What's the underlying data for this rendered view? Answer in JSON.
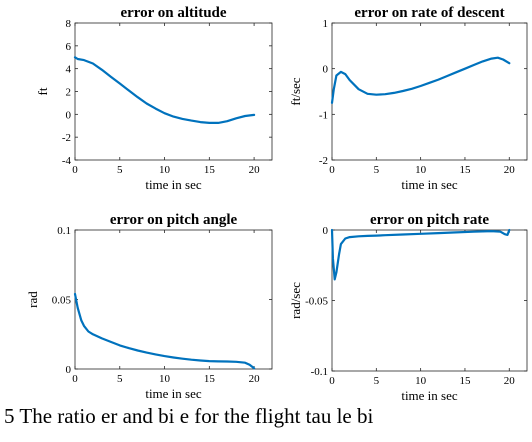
{
  "chart_data": [
    {
      "type": "line",
      "title": "error on altitude",
      "xlabel": "time in sec",
      "ylabel": "ft",
      "xlim": [
        0,
        22
      ],
      "ylim": [
        -4,
        8
      ],
      "xticks": [
        0,
        5,
        10,
        15,
        20
      ],
      "yticks": [
        -4,
        -2,
        0,
        2,
        4,
        6,
        8
      ],
      "grid": false,
      "series": [
        {
          "color": "#0072BD",
          "x": [
            0,
            0.3,
            1,
            2,
            3,
            4,
            5,
            6,
            7,
            8,
            9,
            10,
            11,
            12,
            13,
            14,
            15,
            16,
            17,
            18,
            19,
            20
          ],
          "y": [
            5.0,
            4.85,
            4.75,
            4.45,
            3.9,
            3.3,
            2.7,
            2.1,
            1.5,
            0.95,
            0.5,
            0.1,
            -0.2,
            -0.4,
            -0.55,
            -0.68,
            -0.75,
            -0.75,
            -0.6,
            -0.35,
            -0.15,
            -0.05
          ]
        }
      ]
    },
    {
      "type": "line",
      "title": "error on rate of descent",
      "xlabel": "time in sec",
      "ylabel": "ft/sec",
      "xlim": [
        0,
        22
      ],
      "ylim": [
        -2,
        1
      ],
      "xticks": [
        0,
        5,
        10,
        15,
        20
      ],
      "yticks": [
        -2,
        -1,
        0,
        1
      ],
      "grid": false,
      "series": [
        {
          "color": "#0072BD",
          "x": [
            0,
            0.2,
            0.5,
            1,
            1.5,
            2,
            3,
            4,
            5,
            6,
            7,
            8,
            9,
            10,
            11,
            12,
            13,
            14,
            15,
            16,
            17,
            18,
            18.7,
            19.3,
            20
          ],
          "y": [
            -0.75,
            -0.45,
            -0.15,
            -0.07,
            -0.12,
            -0.25,
            -0.45,
            -0.55,
            -0.57,
            -0.56,
            -0.53,
            -0.49,
            -0.44,
            -0.38,
            -0.31,
            -0.24,
            -0.16,
            -0.08,
            0.0,
            0.08,
            0.16,
            0.22,
            0.24,
            0.2,
            0.12
          ]
        }
      ]
    },
    {
      "type": "line",
      "title": "error on pitch angle",
      "xlabel": "time in sec",
      "ylabel": "rad",
      "xlim": [
        0,
        22
      ],
      "ylim": [
        0,
        0.1
      ],
      "xticks": [
        0,
        5,
        10,
        15,
        20
      ],
      "yticks": [
        0,
        0.05,
        0.1
      ],
      "grid": false,
      "series": [
        {
          "color": "#0072BD",
          "x": [
            0,
            0.3,
            0.7,
            1,
            1.5,
            2,
            3,
            4,
            5,
            6,
            7,
            8,
            9,
            10,
            11,
            12,
            13,
            14,
            15,
            16,
            17,
            18,
            19,
            19.5,
            20
          ],
          "y": [
            0.054,
            0.044,
            0.035,
            0.031,
            0.027,
            0.025,
            0.022,
            0.0195,
            0.017,
            0.015,
            0.0133,
            0.0118,
            0.0105,
            0.0093,
            0.0083,
            0.0074,
            0.0067,
            0.0061,
            0.0057,
            0.0055,
            0.0054,
            0.0052,
            0.0045,
            0.003,
            0.0005
          ]
        }
      ]
    },
    {
      "type": "line",
      "title": "error on pitch rate",
      "xlabel": "time in sec",
      "ylabel": "rad/sec",
      "xlim": [
        0,
        22
      ],
      "ylim": [
        -0.1,
        0
      ],
      "xticks": [
        0,
        5,
        10,
        15,
        20
      ],
      "yticks": [
        -0.1,
        -0.05,
        0
      ],
      "grid": false,
      "series": [
        {
          "color": "#0072BD",
          "x": [
            0,
            0.1,
            0.3,
            0.5,
            0.8,
            1,
            1.5,
            2,
            3,
            4,
            5,
            6,
            8,
            10,
            12,
            14,
            16,
            18,
            19,
            19.5,
            19.8,
            20
          ],
          "y": [
            0,
            -0.02,
            -0.035,
            -0.03,
            -0.017,
            -0.01,
            -0.006,
            -0.005,
            -0.0045,
            -0.0042,
            -0.004,
            -0.0037,
            -0.0032,
            -0.0027,
            -0.0022,
            -0.0017,
            -0.0012,
            -0.0008,
            -0.0012,
            -0.003,
            -0.0035,
            0
          ]
        }
      ]
    }
  ],
  "caption": {
    "text": "5  The  ratio    er    and  bi          e  for  the  flight  tau  le  bi"
  }
}
